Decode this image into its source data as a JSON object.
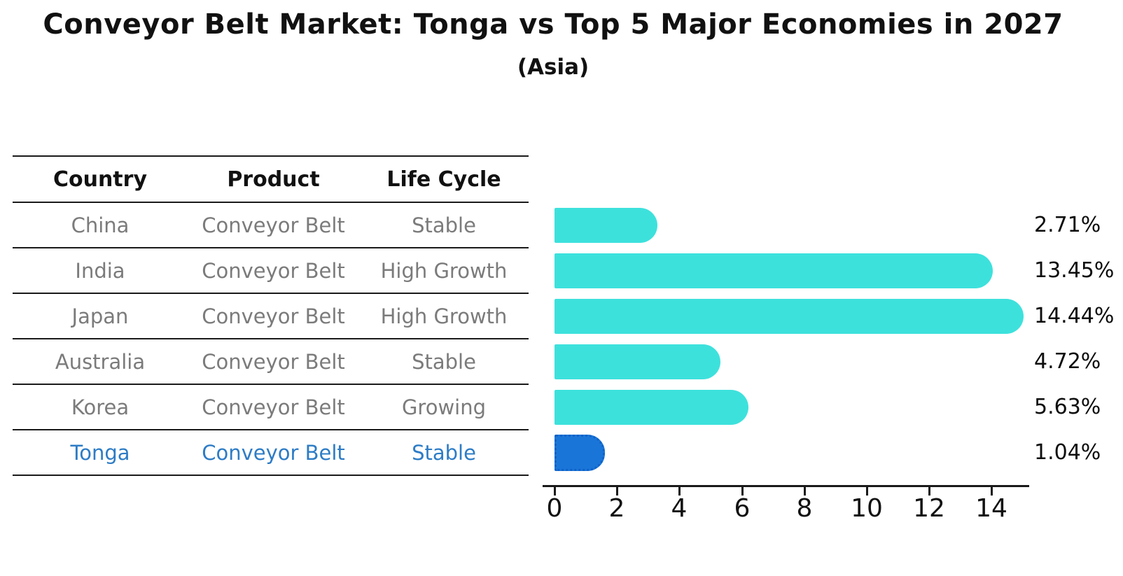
{
  "title": "Conveyor Belt Market: Tonga vs Top 5 Major Economies in 2027",
  "subtitle": "(Asia)",
  "table": {
    "headers": [
      "Country",
      "Product",
      "Life Cycle"
    ],
    "rows": [
      {
        "country": "China",
        "product": "Conveyor Belt",
        "life_cycle": "Stable",
        "highlight": false
      },
      {
        "country": "India",
        "product": "Conveyor Belt",
        "life_cycle": "High Growth",
        "highlight": false
      },
      {
        "country": "Japan",
        "product": "Conveyor Belt",
        "life_cycle": "High Growth",
        "highlight": false
      },
      {
        "country": "Australia",
        "product": "Conveyor Belt",
        "life_cycle": "Stable",
        "highlight": false
      },
      {
        "country": "Korea",
        "product": "Conveyor Belt",
        "life_cycle": "Growing",
        "highlight": false
      },
      {
        "country": "Tonga",
        "product": "Conveyor Belt",
        "life_cycle": "Stable",
        "highlight": true
      }
    ]
  },
  "chart_data": {
    "type": "bar",
    "orientation": "horizontal",
    "categories": [
      "China",
      "India",
      "Japan",
      "Australia",
      "Korea",
      "Tonga"
    ],
    "values": [
      2.71,
      13.45,
      14.44,
      4.72,
      5.63,
      1.04
    ],
    "labels": [
      "2.71%",
      "13.45%",
      "14.44%",
      "4.72%",
      "5.63%",
      "1.04%"
    ],
    "x_ticks": [
      0,
      2,
      4,
      6,
      8,
      10,
      12,
      14
    ],
    "xlim": [
      0,
      15.2
    ],
    "grid": false,
    "legend": "none",
    "bar_color": "#3de1dc",
    "highlight_color": "#1a75d8",
    "highlight_index": 5,
    "highlight_category": "Tonga",
    "value_label_color": "#0d0d0d"
  },
  "colors": {
    "background": "#ffffff",
    "title_text": "#111111",
    "table_line": "#1a1a1a",
    "body_text": "#7b7b7b",
    "highlight_text": "#2d7cc6",
    "axis": "#1a1a1a"
  }
}
